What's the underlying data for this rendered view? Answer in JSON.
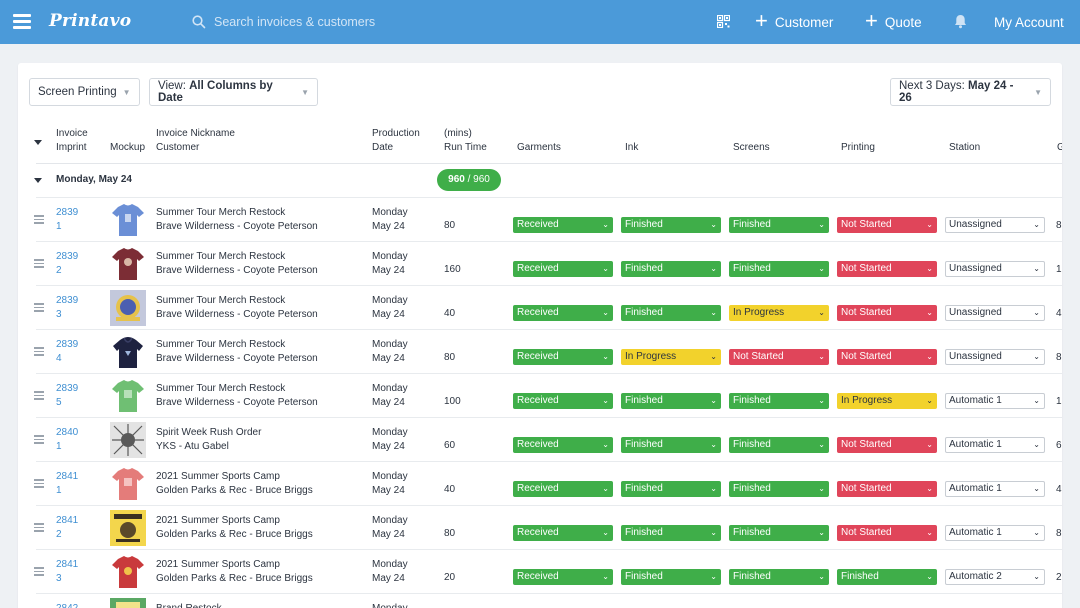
{
  "topbar": {
    "logo": "Printavo",
    "search_placeholder": "Search invoices & customers",
    "customer_label": "Customer",
    "quote_label": "Quote",
    "account_label": "My Account"
  },
  "filters": {
    "department": "Screen Printing",
    "view_prefix": "View:",
    "view_value": "All Columns by Date",
    "range_prefix": "Next 3 Days:",
    "range_value": "May 24 - 26"
  },
  "columns": {
    "invoice": [
      "Invoice",
      "Imprint"
    ],
    "mockup": "Mockup",
    "nickname": [
      "Invoice Nickname",
      "Customer"
    ],
    "production": [
      "Production",
      "Date"
    ],
    "runtime": [
      "(mins)",
      "Run Time"
    ],
    "garments": "Garments",
    "ink": "Ink",
    "screens": "Screens",
    "printing": "Printing",
    "station": "Station",
    "extra": "G"
  },
  "colors": {
    "green": "#3fae49",
    "yellow": "#f2d22c",
    "red": "#e0455a",
    "link": "#3f8fd2",
    "topbar": "#4b9ad9"
  },
  "group": {
    "label": "Monday, May 24",
    "run_done": "960",
    "run_total": "/ 960"
  },
  "rows": [
    {
      "inv": [
        "2839",
        "1"
      ],
      "mockup": "blue-tshirt",
      "nick": "Summer Tour Merch Restock",
      "customer": "Brave Wilderness - Coyote Peterson",
      "day": "Monday",
      "date": "May 24",
      "run": "80",
      "garments": "Received",
      "ink": "Finished",
      "screens": "Finished",
      "printing": "Not Started",
      "station": "Unassigned",
      "extra": "8"
    },
    {
      "inv": [
        "2839",
        "2"
      ],
      "mockup": "maroon-tshirt",
      "nick": "Summer Tour Merch Restock",
      "customer": "Brave Wilderness - Coyote Peterson",
      "day": "Monday",
      "date": "May 24",
      "run": "160",
      "garments": "Received",
      "ink": "Finished",
      "screens": "Finished",
      "printing": "Not Started",
      "station": "Unassigned",
      "extra": "1"
    },
    {
      "inv": [
        "2839",
        "3"
      ],
      "mockup": "logo-art",
      "nick": "Summer Tour Merch Restock",
      "customer": "Brave Wilderness - Coyote Peterson",
      "day": "Monday",
      "date": "May 24",
      "run": "40",
      "garments": "Received",
      "ink": "Finished",
      "screens": "In Progress",
      "printing": "Not Started",
      "station": "Unassigned",
      "extra": "4"
    },
    {
      "inv": [
        "2839",
        "4"
      ],
      "mockup": "navy-hoodie",
      "nick": "Summer Tour Merch Restock",
      "customer": "Brave Wilderness - Coyote Peterson",
      "day": "Monday",
      "date": "May 24",
      "run": "80",
      "garments": "Received",
      "ink": "In Progress",
      "screens": "Not Started",
      "printing": "Not Started",
      "station": "Unassigned",
      "extra": "8"
    },
    {
      "inv": [
        "2839",
        "5"
      ],
      "mockup": "green-tshirt",
      "nick": "Summer Tour Merch Restock",
      "customer": "Brave Wilderness - Coyote Peterson",
      "day": "Monday",
      "date": "May 24",
      "run": "100",
      "garments": "Received",
      "ink": "Finished",
      "screens": "Finished",
      "printing": "In Progress",
      "station": "Automatic 1",
      "extra": "1"
    },
    {
      "inv": [
        "2840",
        "1"
      ],
      "mockup": "gray-art",
      "nick": "Spirit Week Rush Order",
      "customer": "YKS - Atu Gabel",
      "day": "Monday",
      "date": "May 24",
      "run": "60",
      "garments": "Received",
      "ink": "Finished",
      "screens": "Finished",
      "printing": "Not Started",
      "station": "Automatic 1",
      "extra": "6"
    },
    {
      "inv": [
        "2841",
        "1"
      ],
      "mockup": "salmon-tshirt",
      "nick": "2021 Summer Sports Camp",
      "customer": "Golden Parks & Rec - Bruce Briggs",
      "day": "Monday",
      "date": "May 24",
      "run": "40",
      "garments": "Received",
      "ink": "Finished",
      "screens": "Finished",
      "printing": "Not Started",
      "station": "Automatic 1",
      "extra": "4"
    },
    {
      "inv": [
        "2841",
        "2"
      ],
      "mockup": "yellow-art",
      "nick": "2021 Summer Sports Camp",
      "customer": "Golden Parks & Rec - Bruce Briggs",
      "day": "Monday",
      "date": "May 24",
      "run": "80",
      "garments": "Received",
      "ink": "Finished",
      "screens": "Finished",
      "printing": "Not Started",
      "station": "Automatic 1",
      "extra": "8"
    },
    {
      "inv": [
        "2841",
        "3"
      ],
      "mockup": "red-tshirt",
      "nick": "2021 Summer Sports Camp",
      "customer": "Golden Parks & Rec - Bruce Briggs",
      "day": "Monday",
      "date": "May 24",
      "run": "20",
      "garments": "Received",
      "ink": "Finished",
      "screens": "Finished",
      "printing": "Finished",
      "station": "Automatic 2",
      "extra": "2"
    },
    {
      "inv": [
        "2842",
        ""
      ],
      "mockup": "green-art",
      "nick": "Brand Restock",
      "customer": "",
      "day": "Monday",
      "date": "",
      "run": "",
      "garments": "",
      "ink": "",
      "screens": "",
      "printing": "",
      "station": "",
      "extra": ""
    }
  ]
}
